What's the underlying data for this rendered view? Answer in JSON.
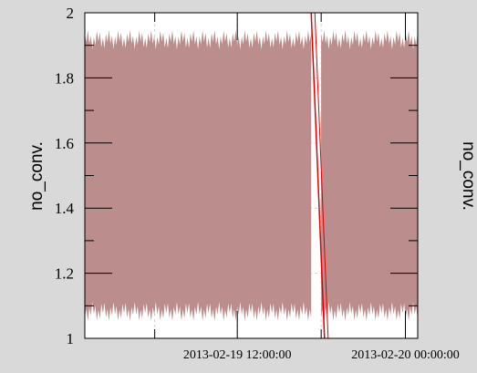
{
  "chart_data": {
    "type": "area",
    "title": "",
    "ylabel": "no_conv.",
    "right_ylabel_fragment": "no_conv.",
    "xlabel": "",
    "ylim": [
      1,
      2
    ],
    "yticks": [
      "1",
      "1.2",
      "1.4",
      "1.6",
      "1.8",
      "2"
    ],
    "xticks": [
      {
        "label": "2013-02-19 12:00:00",
        "t": 0.458
      },
      {
        "label": "2013-02-20 00:00:00",
        "t": 0.963
      }
    ],
    "grid": true,
    "legend": "none",
    "series": [
      {
        "style": "filled band oscillating between ~1.1 and ~1.9",
        "lower": 1.1,
        "upper": 1.9,
        "color": "#bb8d8d"
      },
      {
        "style": "red line",
        "color": "#e00000",
        "points": [
          [
            0.68,
            2.0
          ],
          [
            0.72,
            1.0
          ]
        ]
      }
    ],
    "gap": [
      0.68,
      0.71
    ],
    "colors": {
      "background": "#d9d9d9",
      "plot_bg": "#ffffff",
      "band": "#bb8d8d",
      "line": "#e00000",
      "grid": "#d0d0d0"
    }
  }
}
